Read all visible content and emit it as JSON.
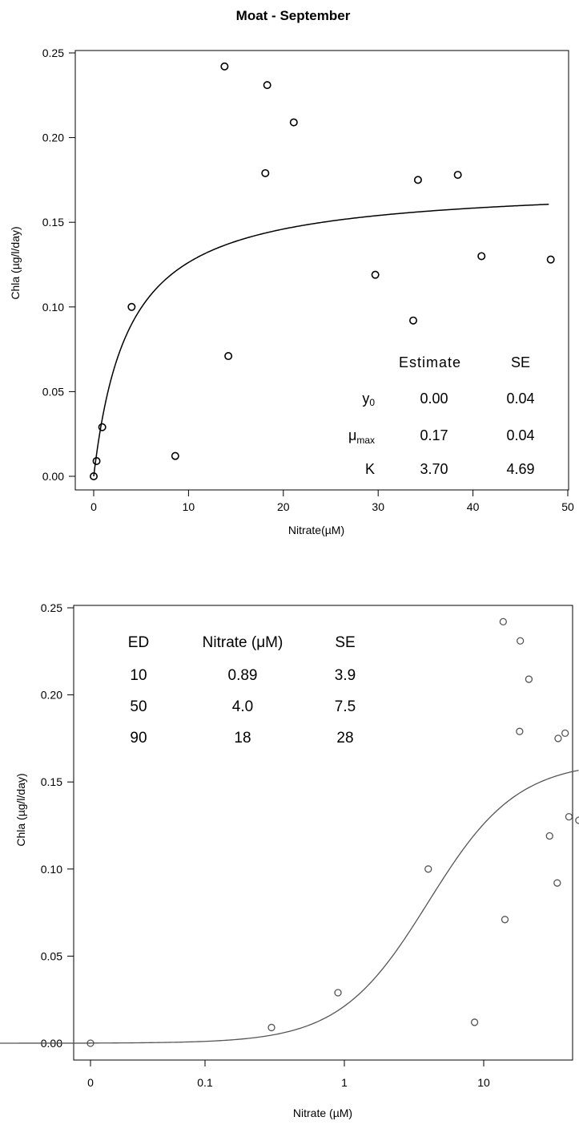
{
  "title": "Moat  - September",
  "chart_data": [
    {
      "type": "scatter",
      "xlabel": "Nitrate(µM)",
      "ylabel": "Chla (µg/l/day)",
      "xlim": [
        0,
        50
      ],
      "ylim": [
        0,
        0.25
      ],
      "x_ticks": [
        "0",
        "10",
        "20",
        "30",
        "40",
        "50"
      ],
      "y_ticks": [
        "0.00",
        "0.05",
        "0.10",
        "0.15",
        "0.20",
        "0.25"
      ],
      "x_scale": "linear",
      "series": [
        {
          "points": [
            [
              0.0,
              0.0
            ],
            [
              0.3,
              0.009
            ],
            [
              0.9,
              0.029
            ],
            [
              4.0,
              0.1
            ],
            [
              8.6,
              0.012
            ],
            [
              13.8,
              0.242
            ],
            [
              14.2,
              0.071
            ],
            [
              18.1,
              0.179
            ],
            [
              18.3,
              0.231
            ],
            [
              21.1,
              0.209
            ],
            [
              29.7,
              0.119
            ],
            [
              33.7,
              0.092
            ],
            [
              34.2,
              0.175
            ],
            [
              38.4,
              0.178
            ],
            [
              40.9,
              0.13
            ],
            [
              48.2,
              0.128
            ]
          ]
        }
      ],
      "fit": {
        "model": "y0 + mu_max * x / (K + x)",
        "y0": 0.0,
        "mu_max": 0.173,
        "K": 3.7,
        "x_range": [
          0,
          48
        ]
      },
      "table": {
        "headers": [
          "",
          "Estimate",
          "SE"
        ],
        "rows": [
          {
            "label": "y",
            "label_sub": "0",
            "estimate": "0.00",
            "se": "0.04"
          },
          {
            "label": "μ",
            "label_sub": "max",
            "estimate": "0.17",
            "se": "0.04"
          },
          {
            "label": "K",
            "label_sub": "",
            "estimate": "3.70",
            "se": "4.69"
          }
        ]
      }
    },
    {
      "type": "scatter",
      "xlabel": "Nitrate (µM)",
      "ylabel": "Chla (µg/l/day)",
      "ylim": [
        0,
        0.25
      ],
      "x_scale": "log (with 0 tick)",
      "x_ticks": [
        "0",
        "0.1",
        "1",
        "10"
      ],
      "y_ticks": [
        "0.00",
        "0.05",
        "0.10",
        "0.15",
        "0.20",
        "0.25"
      ],
      "series": [
        {
          "points": [
            [
              0.0,
              0.0
            ],
            [
              0.3,
              0.009
            ],
            [
              0.9,
              0.029
            ],
            [
              4.0,
              0.1
            ],
            [
              8.6,
              0.012
            ],
            [
              13.8,
              0.242
            ],
            [
              14.2,
              0.071
            ],
            [
              18.1,
              0.179
            ],
            [
              18.3,
              0.231
            ],
            [
              21.1,
              0.209
            ],
            [
              29.7,
              0.119
            ],
            [
              33.7,
              0.092
            ],
            [
              34.2,
              0.175
            ],
            [
              38.4,
              0.178
            ],
            [
              40.9,
              0.13
            ],
            [
              48.2,
              0.128
            ]
          ]
        }
      ],
      "fit": {
        "model": "log-logistic: ymax / (1 + (ED50 / x)^b)",
        "ymax": 0.162,
        "ED50": 4.0,
        "b": 1.363,
        "x_range": [
          0.001,
          48
        ]
      },
      "table": {
        "headers": [
          "ED",
          "Nitrate (μM)",
          "SE"
        ],
        "rows": [
          [
            "10",
            "0.89",
            "3.9"
          ],
          [
            "50",
            "4.0",
            "7.5"
          ],
          [
            "90",
            "18",
            "28"
          ]
        ]
      }
    }
  ]
}
